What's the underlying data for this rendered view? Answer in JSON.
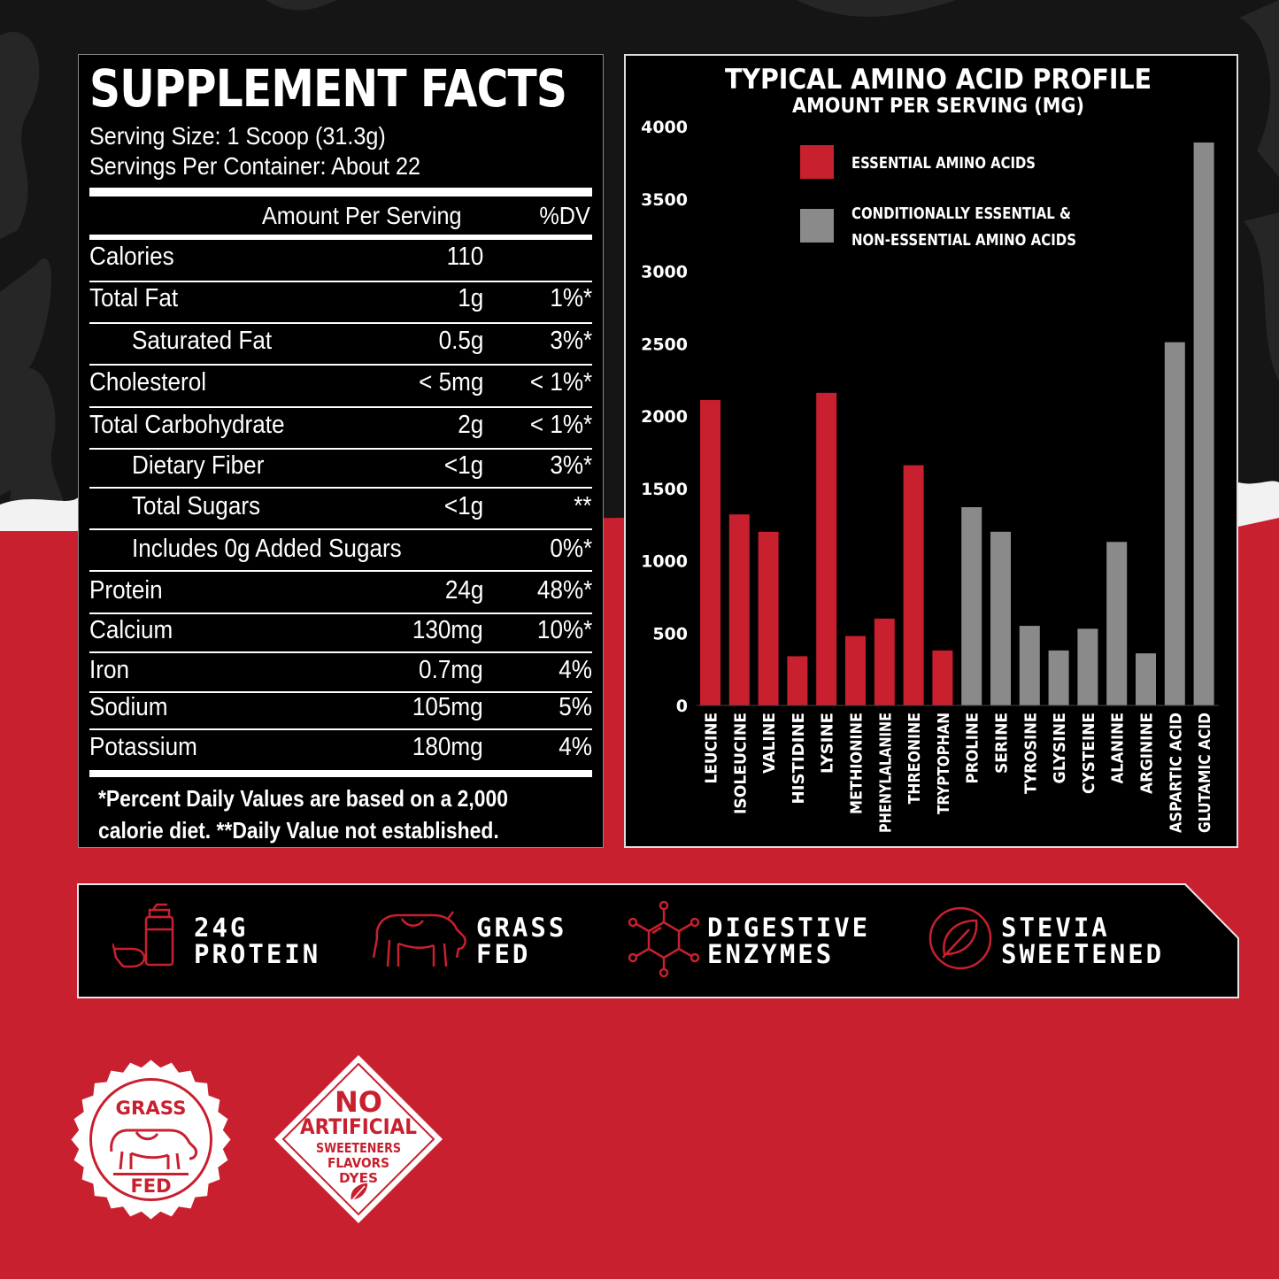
{
  "colors": {
    "red": "#c8202f",
    "gray": "#8a8a8a",
    "black": "#000000",
    "white": "#ffffff"
  },
  "facts": {
    "title": "SUPPLEMENT FACTS",
    "serving_size": "Serving Size: 1 Scoop (31.3g)",
    "servings_per_container": "Servings Per Container: About 22",
    "header_amount": "Amount Per Serving",
    "header_dv": "%DV",
    "rows": [
      {
        "name": "Calories",
        "amount": "110",
        "dv": "",
        "indent": false
      },
      {
        "name": "Total Fat",
        "amount": "1g",
        "dv": "1%*",
        "indent": false
      },
      {
        "name": "Saturated Fat",
        "amount": "0.5g",
        "dv": "3%*",
        "indent": true
      },
      {
        "name": "Cholesterol",
        "amount": "< 5mg",
        "dv": "< 1%*",
        "indent": false
      },
      {
        "name": "Total Carbohydrate",
        "amount": "2g",
        "dv": "< 1%*",
        "indent": false
      },
      {
        "name": "Dietary Fiber",
        "amount": "<1g",
        "dv": "3%*",
        "indent": true
      },
      {
        "name": "Total Sugars",
        "amount": "<1g",
        "dv": "**",
        "indent": true
      },
      {
        "name": "Includes 0g Added Sugars",
        "amount": "",
        "dv": "0%*",
        "indent": true
      },
      {
        "name": "Protein",
        "amount": "24g",
        "dv": "48%*",
        "indent": false
      },
      {
        "name": "Calcium",
        "amount": "130mg",
        "dv": "10%*",
        "indent": false
      },
      {
        "name": "Iron",
        "amount": "0.7mg",
        "dv": "4%",
        "indent": false
      },
      {
        "name": "Sodium",
        "amount": "105mg",
        "dv": "5%",
        "indent": false
      },
      {
        "name": "Potassium",
        "amount": "180mg",
        "dv": "4%",
        "indent": false
      }
    ],
    "footnote_line1": "*Percent Daily Values are based on a 2,000",
    "footnote_line2": "calorie diet. **Daily Value not established."
  },
  "chart_data": {
    "type": "bar",
    "title": "TYPICAL AMINO ACID PROFILE",
    "subtitle": "AMOUNT PER SERVING (MG)",
    "ylim": [
      0,
      4000
    ],
    "yticks": [
      0,
      500,
      1000,
      1500,
      2000,
      2500,
      3000,
      3500,
      4000
    ],
    "grid": false,
    "legend": {
      "placement": "top-left",
      "essential": "ESSENTIAL AMINO ACIDS",
      "nonessential_line1": "CONDITIONALLY ESSENTIAL &",
      "nonessential_line2": "NON-ESSENTIAL AMINO ACIDS"
    },
    "categories": [
      "LEUCINE",
      "ISOLEUCINE",
      "VALINE",
      "HISTIDINE",
      "LYSINE",
      "METHIONINE",
      "PHENYLALANINE",
      "THREONINE",
      "TRYPTOPHAN",
      "PROLINE",
      "SERINE",
      "TYROSINE",
      "GLYSINE",
      "CYSTEINE",
      "ALANINE",
      "ARGININE",
      "ASPARTIC ACID",
      "GLUTAMIC ACID"
    ],
    "values": [
      2110,
      1320,
      1200,
      340,
      2160,
      480,
      600,
      1660,
      380,
      1370,
      1200,
      550,
      380,
      530,
      1130,
      360,
      2510,
      3890
    ],
    "essential": [
      true,
      true,
      true,
      true,
      true,
      true,
      true,
      true,
      true,
      false,
      false,
      false,
      false,
      false,
      false,
      false,
      false,
      false
    ]
  },
  "features": [
    {
      "line1": "24G",
      "line2": "PROTEIN",
      "icon": "protein-shaker-icon"
    },
    {
      "line1": "GRASS",
      "line2": "FED",
      "icon": "cow-icon"
    },
    {
      "line1": "DIGESTIVE",
      "line2": "ENZYMES",
      "icon": "molecule-icon"
    },
    {
      "line1": "STEVIA",
      "line2": "SWEETENED",
      "icon": "leaf-icon"
    }
  ],
  "badges": {
    "grass_top": "GRASS",
    "grass_bottom": "FED",
    "no_line1": "NO",
    "no_line2": "ARTIFICIAL",
    "no_line3": "SWEETENERS",
    "no_line4": "FLAVORS",
    "no_line5": "DYES"
  }
}
